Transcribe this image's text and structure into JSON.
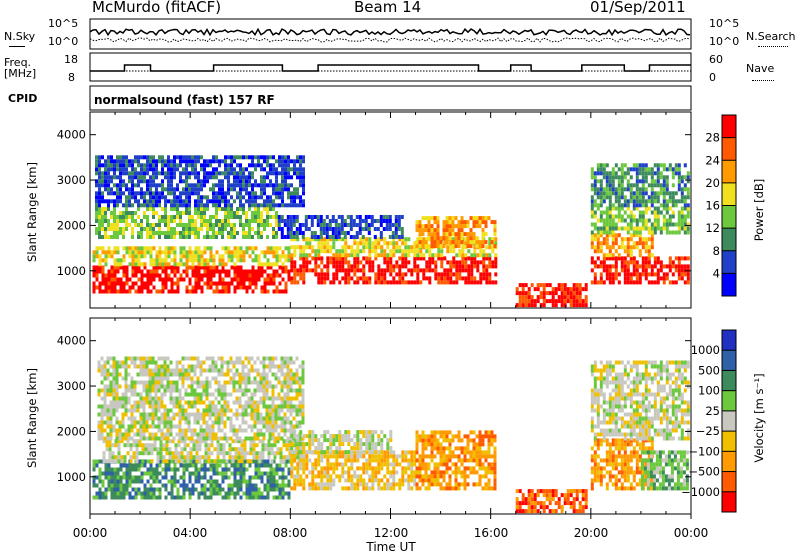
{
  "header": {
    "station": "McMurdo (fitACF)",
    "beam": "Beam 14",
    "date": "01/Sep/2011"
  },
  "noise_panel": {
    "left_label": "N.Sky",
    "right_label": "N.Search",
    "ticks": [
      "10^5",
      "10^0"
    ]
  },
  "freq_panel": {
    "left_label_line1": "Freq.",
    "left_label_line2": "[MHz]",
    "left_ticks": [
      "18",
      "8"
    ],
    "right_ticks": [
      "60",
      "0"
    ],
    "right_label": "Nave"
  },
  "cpid": {
    "label": "CPID",
    "text": "normalsound (fast) 157 RF"
  },
  "time_axis": {
    "label": "Time UT",
    "ticks": [
      "00:00",
      "04:00",
      "08:00",
      "12:00",
      "16:00",
      "20:00",
      "00:00"
    ]
  },
  "chart_data": [
    {
      "type": "heatmap",
      "ylabel": "Slant Range [km]",
      "xlabel": "Time UT",
      "x_range_hours": [
        0,
        24
      ],
      "ylim": [
        180,
        4500
      ],
      "y_ticks": [
        "1000",
        "2000",
        "3000",
        "4000"
      ],
      "colorbar": {
        "title": "Power [dB]",
        "labels": [
          "4",
          "8",
          "12",
          "16",
          "20",
          "24",
          "28"
        ],
        "colors": [
          "#0000ff",
          "#2040c8",
          "#3d8a5c",
          "#6cc83c",
          "#f0e020",
          "#ff9a00",
          "#ff5a00",
          "#ff0000"
        ]
      },
      "regions": [
        {
          "t0": 0.1,
          "t1": 8.0,
          "r0": 500,
          "r1": 1100,
          "level": 7
        },
        {
          "t0": 0.1,
          "t1": 8.0,
          "r0": 1100,
          "r1": 1500,
          "level": 4
        },
        {
          "t0": 0.2,
          "t1": 7.5,
          "r0": 1700,
          "r1": 2400,
          "level": 3
        },
        {
          "t0": 0.2,
          "t1": 8.5,
          "r0": 2400,
          "r1": 3500,
          "level": 1
        },
        {
          "t0": 8.0,
          "t1": 16.2,
          "r0": 700,
          "r1": 1300,
          "level": 7
        },
        {
          "t0": 8.0,
          "t1": 16.2,
          "r0": 1300,
          "r1": 1700,
          "level": 4
        },
        {
          "t0": 7.5,
          "t1": 12.5,
          "r0": 1700,
          "r1": 2200,
          "level": 1
        },
        {
          "t0": 13.0,
          "t1": 16.2,
          "r0": 1500,
          "r1": 2200,
          "level": 5
        },
        {
          "t0": 17.0,
          "t1": 19.8,
          "r0": 200,
          "r1": 700,
          "level": 7
        },
        {
          "t0": 20.0,
          "t1": 23.9,
          "r0": 700,
          "r1": 1300,
          "level": 7
        },
        {
          "t0": 20.0,
          "t1": 22.5,
          "r0": 1300,
          "r1": 1800,
          "level": 5
        },
        {
          "t0": 20.0,
          "t1": 23.9,
          "r0": 1800,
          "r1": 2400,
          "level": 3
        },
        {
          "t0": 20.0,
          "t1": 23.9,
          "r0": 2400,
          "r1": 3300,
          "level": 2
        }
      ]
    },
    {
      "type": "heatmap",
      "ylabel": "Slant Range [km]",
      "xlabel": "Time UT",
      "x_range_hours": [
        0,
        24
      ],
      "ylim": [
        180,
        4500
      ],
      "y_ticks": [
        "1000",
        "2000",
        "3000",
        "4000"
      ],
      "colorbar": {
        "title": "Velocity [m s⁻¹]",
        "labels": [
          "1000",
          "500",
          "100",
          "25",
          "−25",
          "−100",
          "−500",
          "−1000"
        ],
        "colors": [
          "#2030c0",
          "#3060a8",
          "#3d8a5c",
          "#6cc83c",
          "#c8c8c0",
          "#f0c000",
          "#ff9a00",
          "#ff5a00",
          "#ff0000"
        ]
      },
      "regions": [
        {
          "t0": 0.1,
          "t1": 8.0,
          "r0": 500,
          "r1": 1300,
          "level": 2
        },
        {
          "t0": 0.5,
          "t1": 8.5,
          "r0": 1300,
          "r1": 1800,
          "level": 4
        },
        {
          "t0": 0.3,
          "t1": 8.5,
          "r0": 1800,
          "r1": 3600,
          "level": 4
        },
        {
          "t0": 8.0,
          "t1": 13.0,
          "r0": 700,
          "r1": 1500,
          "level": 5
        },
        {
          "t0": 8.0,
          "t1": 12.0,
          "r0": 1500,
          "r1": 2000,
          "level": 4
        },
        {
          "t0": 13.0,
          "t1": 16.2,
          "r0": 700,
          "r1": 2000,
          "level": 6
        },
        {
          "t0": 17.0,
          "t1": 19.8,
          "r0": 200,
          "r1": 700,
          "level": 7
        },
        {
          "t0": 20.0,
          "t1": 22.5,
          "r0": 700,
          "r1": 1800,
          "level": 6
        },
        {
          "t0": 22.0,
          "t1": 23.9,
          "r0": 700,
          "r1": 1500,
          "level": 3
        },
        {
          "t0": 20.0,
          "t1": 23.9,
          "r0": 1800,
          "r1": 3500,
          "level": 4
        }
      ]
    }
  ]
}
